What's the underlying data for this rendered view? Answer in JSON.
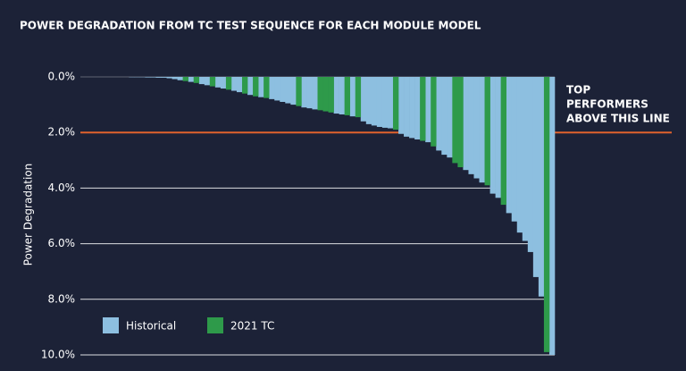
{
  "chart_data": {
    "type": "bar",
    "title": "POWER DEGRADATION FROM TC TEST SEQUENCE FOR EACH MODULE MODEL",
    "y_label": "Power Degradation",
    "y_inverted": true,
    "ylim": [
      0,
      10
    ],
    "yticks": [
      {
        "value": 0,
        "label": "0.0%"
      },
      {
        "value": 2,
        "label": "2.0%"
      },
      {
        "value": 4,
        "label": "4.0%"
      },
      {
        "value": 6,
        "label": "6.0%"
      },
      {
        "value": 8,
        "label": "8.0%"
      },
      {
        "value": 10,
        "label": "10.0%"
      }
    ],
    "grid": true,
    "legend": "lower left",
    "reference_line": {
      "value": 2,
      "color": "#e0622d",
      "label": [
        "TOP",
        "PERFORMERS",
        "ABOVE THIS LINE"
      ]
    },
    "series": [
      {
        "name": "Historical",
        "color": "#8dbfe0",
        "values": [
          0,
          0,
          0,
          0,
          0,
          0,
          0,
          0,
          0,
          0.01,
          0.01,
          0.01,
          0.02,
          0.02,
          0.03,
          0.03,
          0.05,
          0.08,
          0.12,
          null,
          0.18,
          null,
          0.26,
          0.3,
          null,
          0.38,
          0.42,
          null,
          0.5,
          0.55,
          null,
          0.65,
          null,
          0.73,
          null,
          0.8,
          0.85,
          0.9,
          0.95,
          1.0,
          null,
          1.1,
          1.13,
          1.17,
          null,
          null,
          null,
          1.32,
          1.35,
          null,
          1.42,
          null,
          1.6,
          1.7,
          1.75,
          1.8,
          1.83,
          1.85,
          null,
          2.05,
          2.15,
          2.2,
          2.25,
          null,
          2.35,
          null,
          2.65,
          2.8,
          2.9,
          null,
          null,
          3.35,
          3.5,
          3.65,
          3.8,
          null,
          4.2,
          4.35,
          null,
          4.9,
          5.2,
          5.6,
          5.9,
          6.3,
          7.2,
          7.9,
          null,
          10
        ]
      },
      {
        "name": "2021 TC",
        "color": "#2e9a4a",
        "values": [
          null,
          null,
          null,
          null,
          null,
          null,
          null,
          null,
          null,
          null,
          null,
          null,
          null,
          null,
          null,
          null,
          null,
          null,
          null,
          0.15,
          null,
          0.22,
          null,
          null,
          0.34,
          null,
          null,
          0.46,
          null,
          null,
          0.6,
          null,
          0.7,
          null,
          0.76,
          null,
          null,
          null,
          null,
          null,
          1.05,
          null,
          null,
          null,
          1.2,
          1.24,
          1.28,
          null,
          null,
          1.38,
          null,
          1.45,
          null,
          null,
          null,
          null,
          null,
          null,
          1.9,
          null,
          null,
          null,
          null,
          2.3,
          null,
          2.5,
          null,
          null,
          null,
          3.1,
          3.25,
          null,
          null,
          null,
          null,
          3.9,
          null,
          null,
          4.6,
          null,
          null,
          null,
          null,
          null,
          null,
          null,
          9.9,
          null
        ]
      }
    ]
  }
}
